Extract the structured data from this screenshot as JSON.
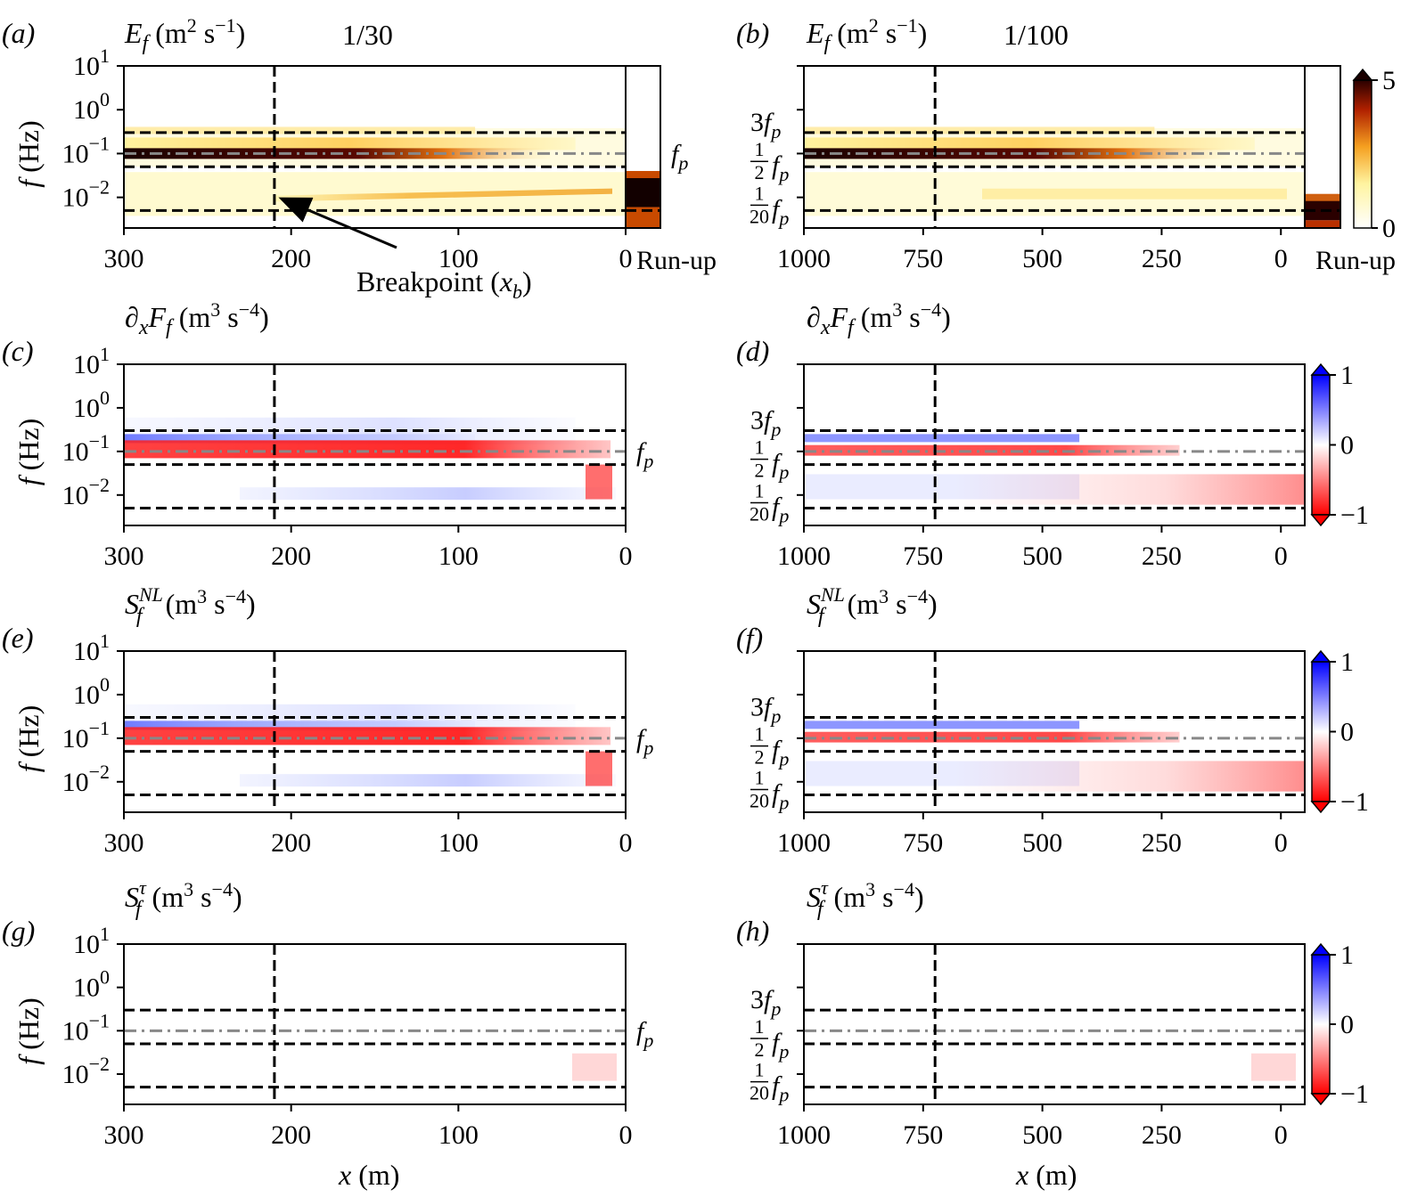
{
  "figure": {
    "xlabel": "x (m)",
    "ylabel": "f (Hz)",
    "ytick_labels": [
      "10^1",
      "10^0",
      "10^-1",
      "10^-2"
    ],
    "line_labels": {
      "fp": "f_p",
      "three_fp": "3f_p",
      "half_fp": "1/2 f_p",
      "twentieth_fp": "1/20 f_p"
    },
    "runup_label": "Run-up",
    "annotation": "Breakpoint (x_b)",
    "slope_titles": {
      "left": "1/30",
      "right": "1/100"
    }
  },
  "chart_data": [
    {
      "id": "a",
      "type": "heatmap",
      "panel_label": "(a)",
      "title": "E_f (m^2 s^-1)",
      "slope": "1/30",
      "xlim": [
        300,
        0
      ],
      "xticks": [
        300,
        200,
        100,
        0
      ],
      "yscale": "log",
      "ylim": [
        0.002,
        10
      ],
      "breakpoint_x": 210,
      "peak_frequency_hz": 0.1,
      "reference_lines_hz": [
        0.3,
        0.1,
        0.05,
        0.005
      ],
      "has_runup_panel": true,
      "colorbar": null
    },
    {
      "id": "b",
      "type": "heatmap",
      "panel_label": "(b)",
      "title": "E_f (m^2 s^-1)",
      "slope": "1/100",
      "xlim": [
        1000,
        -50
      ],
      "xticks": [
        1000,
        750,
        500,
        250,
        0
      ],
      "yscale": "log",
      "ylim": [
        0.002,
        10
      ],
      "breakpoint_x": 725,
      "peak_frequency_hz": 0.1,
      "reference_lines_hz": [
        0.3,
        0.1,
        0.05,
        0.005
      ],
      "has_runup_panel": true,
      "colorbar": {
        "cmap": "afmhot_r",
        "min": 0,
        "max": 5,
        "ticks": [
          0,
          5
        ],
        "extend": "max"
      }
    },
    {
      "id": "c",
      "type": "heatmap",
      "panel_label": "(c)",
      "title": "∂xFf (m^3 s^-4)",
      "xlim": [
        300,
        0
      ],
      "xticks": [
        300,
        200,
        100,
        0
      ],
      "yscale": "log",
      "ylim": [
        0.002,
        10
      ],
      "breakpoint_x": 210,
      "peak_frequency_hz": 0.1,
      "reference_lines_hz": [
        0.3,
        0.1,
        0.05,
        0.005
      ],
      "colorbar": null
    },
    {
      "id": "d",
      "type": "heatmap",
      "panel_label": "(d)",
      "title": "∂xFf (m^3 s^-4)",
      "xlim": [
        1000,
        -50
      ],
      "xticks": [
        1000,
        750,
        500,
        250,
        0
      ],
      "yscale": "log",
      "ylim": [
        0.002,
        10
      ],
      "breakpoint_x": 725,
      "peak_frequency_hz": 0.1,
      "reference_lines_hz": [
        0.3,
        0.1,
        0.05,
        0.005
      ],
      "colorbar": {
        "cmap": "bwr_r",
        "min": -1,
        "max": 1,
        "ticks": [
          -1,
          0,
          1
        ],
        "extend": "both"
      }
    },
    {
      "id": "e",
      "type": "heatmap",
      "panel_label": "(e)",
      "title": "S_f^NL (m^3 s^-4)",
      "xlim": [
        300,
        0
      ],
      "xticks": [
        300,
        200,
        100,
        0
      ],
      "yscale": "log",
      "ylim": [
        0.002,
        10
      ],
      "breakpoint_x": 210,
      "peak_frequency_hz": 0.1,
      "reference_lines_hz": [
        0.3,
        0.1,
        0.05,
        0.005
      ],
      "colorbar": null
    },
    {
      "id": "f",
      "type": "heatmap",
      "panel_label": "(f)",
      "title": "S_f^NL (m^3 s^-4)",
      "xlim": [
        1000,
        -50
      ],
      "xticks": [
        1000,
        750,
        500,
        250,
        0
      ],
      "yscale": "log",
      "ylim": [
        0.002,
        10
      ],
      "breakpoint_x": 725,
      "peak_frequency_hz": 0.1,
      "reference_lines_hz": [
        0.3,
        0.1,
        0.05,
        0.005
      ],
      "colorbar": {
        "cmap": "bwr_r",
        "min": -1,
        "max": 1,
        "ticks": [
          -1,
          0,
          1
        ],
        "extend": "both"
      }
    },
    {
      "id": "g",
      "type": "heatmap",
      "panel_label": "(g)",
      "title": "S_f^τ (m^3 s^-4)",
      "xlim": [
        300,
        0
      ],
      "xticks": [
        300,
        200,
        100,
        0
      ],
      "yscale": "log",
      "ylim": [
        0.002,
        10
      ],
      "breakpoint_x": 210,
      "peak_frequency_hz": 0.1,
      "reference_lines_hz": [
        0.3,
        0.1,
        0.05,
        0.005
      ],
      "colorbar": null
    },
    {
      "id": "h",
      "type": "heatmap",
      "panel_label": "(h)",
      "title": "S_f^τ (m^3 s^-4)",
      "xlim": [
        1000,
        -50
      ],
      "xticks": [
        1000,
        750,
        500,
        250,
        0
      ],
      "yscale": "log",
      "ylim": [
        0.002,
        10
      ],
      "breakpoint_x": 725,
      "peak_frequency_hz": 0.1,
      "reference_lines_hz": [
        0.3,
        0.1,
        0.05,
        0.005
      ],
      "colorbar": {
        "cmap": "bwr_r",
        "min": -1,
        "max": 1,
        "ticks": [
          -1,
          0,
          1
        ],
        "extend": "both"
      }
    }
  ]
}
